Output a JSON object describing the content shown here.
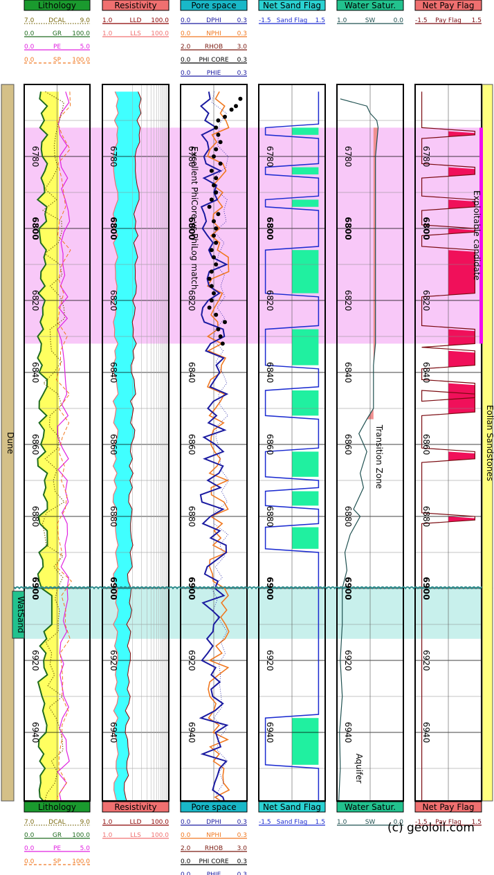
{
  "page": {
    "copyright": "(c) geoloil.com"
  },
  "colors": {
    "lithology": "#1a9a2e",
    "resistivity": "#f07070",
    "pore_space": "#19b8c8",
    "net_sand": "#2ad2d2",
    "water_sat": "#22c28e",
    "net_pay": "#f07070",
    "dcal": "#7a6a10",
    "gr": "#1e6b1e",
    "pe": "#e020e0",
    "sp": "#f07820",
    "lld": "#8b0000",
    "lls": "#f07070",
    "dphi": "#1a1aa0",
    "nphi": "#f07820",
    "rhob": "#7a1a10",
    "phicore": "#000000",
    "phie": "#1a1aa0",
    "sandflag": "#1a2ad0",
    "sw": "#1e5050",
    "payflag": "#7a0a10",
    "sand_fill": "#ffff60",
    "res_fill": "#40ffff",
    "netsand_fill": "#20f0a0",
    "sw_fill": "#f09090",
    "pay_fill": "#f0105a",
    "candidate_zone": "#f8c8f8",
    "water_zone": "#c8f0ec",
    "candidate_bar": "#f010f0",
    "formation_bar": "#d4c088",
    "eolian_bar": "#ffff80"
  },
  "tracks": [
    {
      "title": "Lithology",
      "curves": [
        {
          "name": "DCAL",
          "min": "7.0",
          "max": "9.0",
          "color": "dcal",
          "dash": "dot"
        },
        {
          "name": "GR",
          "min": "0.0",
          "max": "100.0",
          "color": "gr",
          "dash": "solid"
        },
        {
          "name": "PE",
          "min": "0.0",
          "max": "5.0",
          "color": "pe",
          "dash": "solid"
        },
        {
          "name": "SP",
          "min": "0.0",
          "max": "100.0",
          "color": "sp",
          "dash": "dash"
        }
      ]
    },
    {
      "title": "Resistivity",
      "curves": [
        {
          "name": "LLD",
          "min": "1.0",
          "max": "100.0",
          "color": "lld",
          "dash": "solid"
        },
        {
          "name": "LLS",
          "min": "1.0",
          "max": "100.0",
          "color": "lls",
          "dash": "solid"
        }
      ]
    },
    {
      "title": "Pore space",
      "curves": [
        {
          "name": "DPHI",
          "min": "0.0",
          "max": "0.3",
          "color": "dphi",
          "dash": "solid"
        },
        {
          "name": "NPHI",
          "min": "0.0",
          "max": "0.3",
          "color": "nphi",
          "dash": "solid"
        },
        {
          "name": "RHOB",
          "min": "2.0",
          "max": "3.0",
          "color": "rhob",
          "dash": "solid"
        },
        {
          "name": "PHI CORE",
          "min": "0.0",
          "max": "0.3",
          "color": "phicore",
          "dash": "solid"
        },
        {
          "name": "PHIE",
          "min": "0.0",
          "max": "0.3",
          "color": "phie",
          "dash": "solid"
        }
      ]
    },
    {
      "title": "Net Sand Flag",
      "curves": [
        {
          "name": "Sand Flag",
          "min": "-1.5",
          "max": "1.5",
          "color": "sandflag",
          "dash": "solid"
        }
      ]
    },
    {
      "title": "Water Satur.",
      "curves": [
        {
          "name": "SW",
          "min": "1.0",
          "max": "0.0",
          "color": "sw",
          "dash": "solid"
        }
      ]
    },
    {
      "title": "Net Pay Flag",
      "curves": [
        {
          "name": "Pay Flag",
          "min": "-1.5",
          "max": "1.5",
          "color": "payflag",
          "dash": "solid"
        }
      ]
    }
  ],
  "depth_labels": [
    "6780",
    "6800",
    "6820",
    "6840",
    "6860",
    "6880",
    "6900",
    "6920",
    "6940"
  ],
  "annotations": {
    "core_match": "Excellent PhiCore vs PhiLog match",
    "exploitable": "Exploitable candidate",
    "transition": "Transition Zone",
    "aquifer": "Aquifer",
    "formation": "Dune",
    "water_sand": "WatSand",
    "eolian": "Eolian Sandstones"
  },
  "chart_data": {
    "type": "line",
    "title": "",
    "depth_unit": "",
    "depth_range": [
      6760,
      6964
    ],
    "candidate_zone": [
      6772,
      6832
    ],
    "water_zone": [
      6900,
      6914
    ],
    "water_contact": 6900,
    "sand_flag_intervals": [
      [
        6772,
        6774
      ],
      [
        6783,
        6785
      ],
      [
        6792,
        6794
      ],
      [
        6806,
        6818
      ],
      [
        6828,
        6838
      ],
      [
        6845,
        6852
      ],
      [
        6862,
        6869
      ],
      [
        6873,
        6877
      ],
      [
        6883,
        6889
      ],
      [
        6936,
        6949
      ]
    ],
    "pay_flag_intervals": [
      [
        6773,
        6774
      ],
      [
        6783,
        6785
      ],
      [
        6792,
        6794
      ],
      [
        6800,
        6801
      ],
      [
        6806,
        6818
      ],
      [
        6828,
        6832
      ],
      [
        6834,
        6838
      ],
      [
        6843,
        6847
      ],
      [
        6846,
        6851
      ],
      [
        6862,
        6864
      ],
      [
        6880,
        6881
      ]
    ],
    "sw_profile": [
      [
        6764,
        0.95
      ],
      [
        6766,
        0.55
      ],
      [
        6768,
        0.5
      ],
      [
        6770,
        0.4
      ],
      [
        6772,
        0.38
      ],
      [
        6776,
        0.4
      ],
      [
        6780,
        0.42
      ],
      [
        6790,
        0.42
      ],
      [
        6800,
        0.42
      ],
      [
        6810,
        0.42
      ],
      [
        6820,
        0.42
      ],
      [
        6832,
        0.42
      ],
      [
        6838,
        0.45
      ],
      [
        6842,
        0.45
      ],
      [
        6850,
        0.45
      ],
      [
        6853,
        0.55
      ],
      [
        6857,
        0.67
      ],
      [
        6862,
        0.55
      ],
      [
        6868,
        0.65
      ],
      [
        6872,
        0.6
      ],
      [
        6878,
        0.75
      ],
      [
        6880,
        0.65
      ],
      [
        6885,
        0.8
      ],
      [
        6890,
        0.88
      ],
      [
        6895,
        0.85
      ],
      [
        6900,
        0.92
      ],
      [
        6910,
        0.92
      ],
      [
        6920,
        0.95
      ],
      [
        6930,
        0.92
      ],
      [
        6940,
        0.96
      ],
      [
        6950,
        0.95
      ],
      [
        6962,
        0.98
      ]
    ],
    "phi_core_points": [
      [
        6764,
        0.03
      ],
      [
        6766,
        0.05
      ],
      [
        6767,
        0.07
      ],
      [
        6769,
        0.1
      ],
      [
        6770,
        0.13
      ],
      [
        6772,
        0.14
      ],
      [
        6774,
        0.13
      ],
      [
        6776,
        0.12
      ],
      [
        6778,
        0.14
      ],
      [
        6780,
        0.15
      ],
      [
        6782,
        0.12
      ],
      [
        6784,
        0.16
      ],
      [
        6786,
        0.14
      ],
      [
        6788,
        0.15
      ],
      [
        6790,
        0.14
      ],
      [
        6792,
        0.16
      ],
      [
        6794,
        0.17
      ],
      [
        6796,
        0.13
      ],
      [
        6798,
        0.15
      ],
      [
        6800,
        0.14
      ],
      [
        6802,
        0.15
      ],
      [
        6804,
        0.14
      ],
      [
        6806,
        0.16
      ],
      [
        6808,
        0.15
      ],
      [
        6810,
        0.14
      ],
      [
        6812,
        0.16
      ],
      [
        6814,
        0.17
      ],
      [
        6816,
        0.16
      ],
      [
        6818,
        0.15
      ],
      [
        6820,
        0.16
      ],
      [
        6822,
        0.17
      ],
      [
        6824,
        0.14
      ],
      [
        6826,
        0.1
      ],
      [
        6828,
        0.13
      ],
      [
        6830,
        0.12
      ],
      [
        6832,
        0.11
      ]
    ]
  }
}
